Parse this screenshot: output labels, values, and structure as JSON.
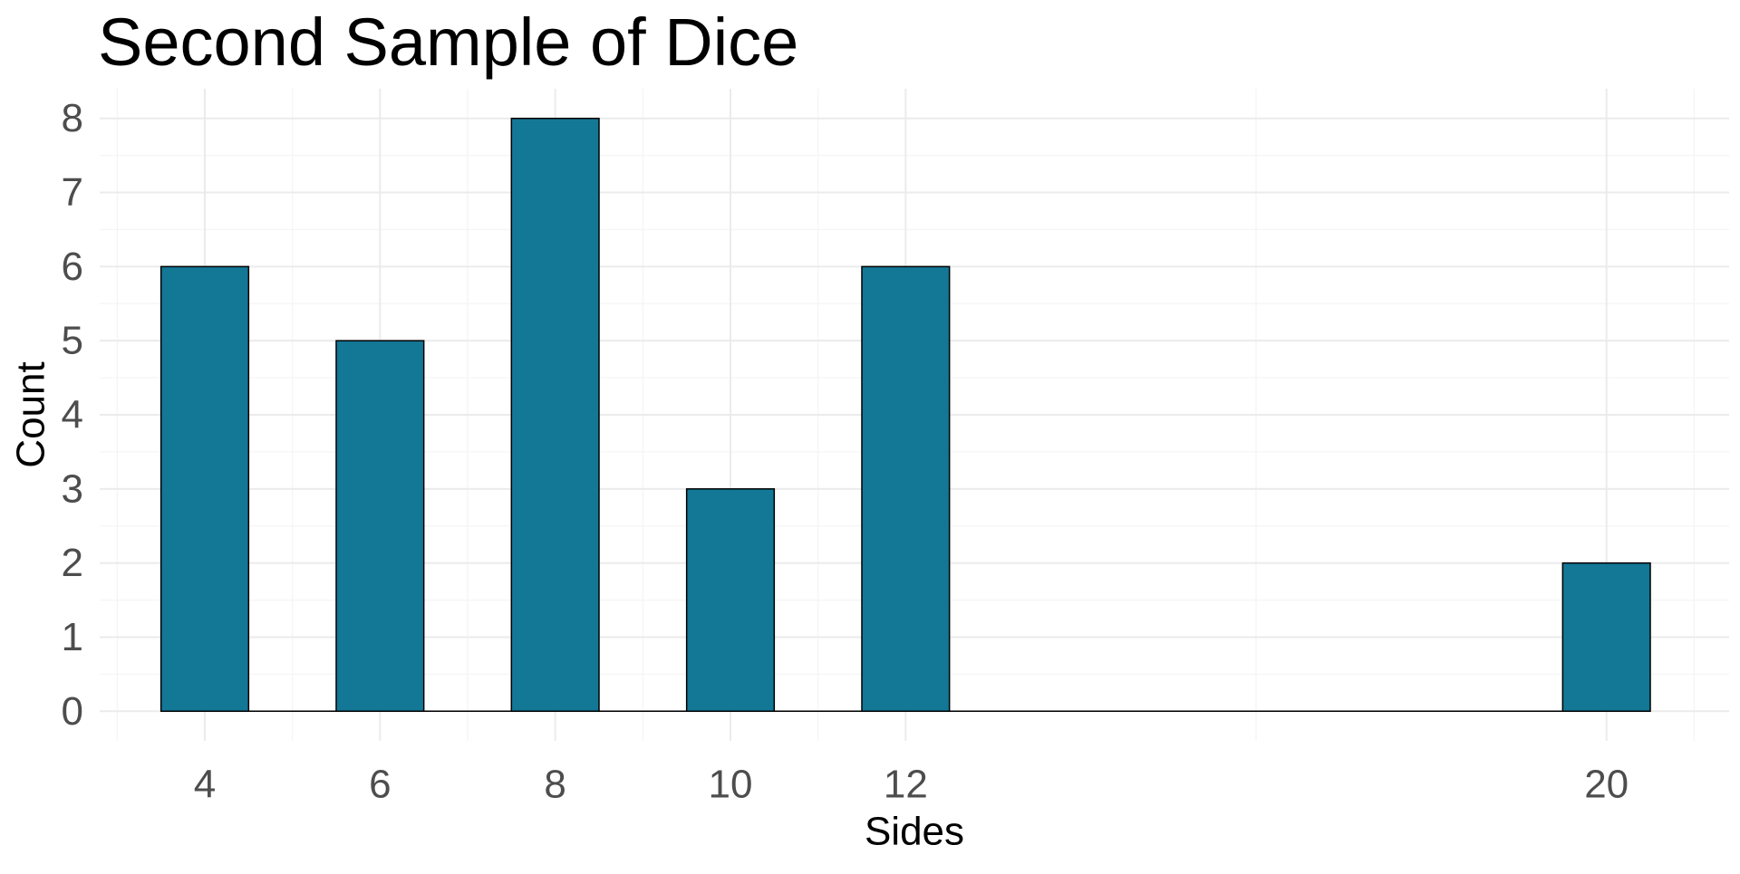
{
  "chart_data": {
    "type": "bar",
    "title": "Second Sample of Dice",
    "xlabel": "Sides",
    "ylabel": "Count",
    "x": [
      4,
      6,
      8,
      10,
      12,
      20
    ],
    "values": [
      6,
      5,
      8,
      3,
      6,
      2
    ],
    "x_ticks": [
      4,
      6,
      8,
      10,
      12,
      20
    ],
    "y_ticks": [
      0,
      1,
      2,
      3,
      4,
      5,
      6,
      7,
      8
    ],
    "xlim": [
      2.8,
      21.4
    ],
    "ylim": [
      -0.4,
      8.4
    ],
    "bar_width": 1.0,
    "grid": true,
    "colors": {
      "bar_fill": "#137796",
      "bar_stroke": "#000000",
      "grid_major": "#ebebeb",
      "grid_minor": "#f5f5f5",
      "tick_text": "#4d4d4d",
      "label_text": "#000000"
    }
  }
}
